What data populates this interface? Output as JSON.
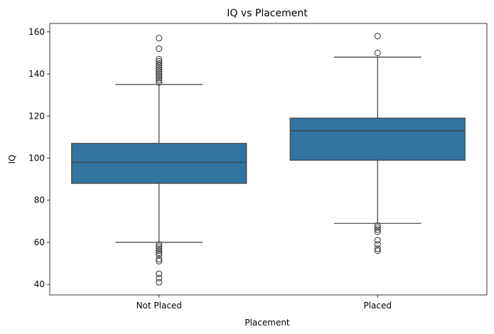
{
  "chart_data": {
    "type": "box",
    "title": "IQ vs Placement",
    "xlabel": "Placement",
    "ylabel": "IQ",
    "ylim": [
      35,
      164
    ],
    "yticks": [
      40,
      60,
      80,
      100,
      120,
      140,
      160
    ],
    "categories": [
      "Not Placed",
      "Placed"
    ],
    "box_color": "#3274a1",
    "line_color": "#3f3f3f",
    "boxes": [
      {
        "category": "Not Placed",
        "whisker_low": 60,
        "q1": 88,
        "median": 98,
        "q3": 107,
        "whisker_high": 135,
        "outliers": [
          157,
          152,
          147,
          146,
          145,
          144,
          143,
          142,
          141,
          140,
          139,
          138,
          137,
          136,
          59,
          58,
          57,
          56,
          55,
          54,
          52,
          51,
          45,
          43,
          41
        ]
      },
      {
        "category": "Placed",
        "whisker_low": 69,
        "q1": 99,
        "median": 113,
        "q3": 119,
        "whisker_high": 148,
        "outliers": [
          158,
          150,
          68,
          67,
          66,
          65,
          61,
          59,
          57,
          56
        ]
      }
    ]
  }
}
